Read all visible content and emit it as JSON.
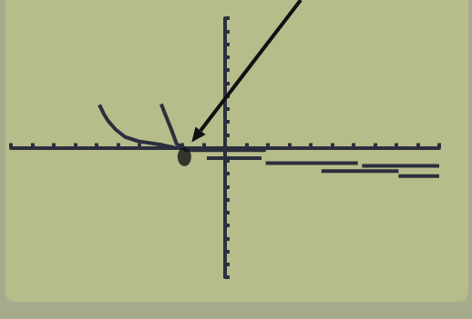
{
  "chart_data": {
    "type": "line",
    "xlim": [
      -10,
      10
    ],
    "ylim": [
      -10,
      10
    ],
    "xticks": [
      -10,
      -9,
      -8,
      -7,
      -6,
      -5,
      -4,
      -3,
      -2,
      -1,
      0,
      1,
      2,
      3,
      4,
      5,
      6,
      7,
      8,
      9,
      10
    ],
    "yticks": [
      -10,
      -9,
      -8,
      -7,
      -6,
      -5,
      -4,
      -3,
      -2,
      -1,
      0,
      1,
      2,
      3,
      4,
      5,
      6,
      7,
      8,
      9,
      10
    ],
    "grid": false,
    "tick_labels": false,
    "color": "#2b2f3d",
    "series": [
      {
        "x": [
          -5.87,
          -5.66,
          -5.45,
          -5.11,
          -4.68,
          -4.04,
          -3.19,
          -2.34
        ],
        "values": [
          3.3,
          2.6,
          2.04,
          1.4,
          0.84,
          0.49,
          0.28,
          0
        ]
      },
      {
        "x": [
          -2.98,
          -2.85,
          -2.68,
          -2.51,
          -2.26,
          -1.91
        ],
        "values": [
          3.37,
          2.81,
          2.11,
          1.4,
          0.28,
          0
        ]
      },
      {
        "x": [
          -1.91,
          1.9
        ],
        "values": [
          -0.2,
          -0.2
        ]
      },
      {
        "x": [
          -0.85,
          1.7
        ],
        "values": [
          -0.8,
          -0.8
        ]
      },
      {
        "x": [
          1.9,
          6.2
        ],
        "values": [
          -1.2,
          -1.2
        ]
      },
      {
        "x": [
          4.5,
          8.1
        ],
        "values": [
          -1.8,
          -1.8
        ]
      },
      {
        "x": [
          6.4,
          10
        ],
        "values": [
          -1.4,
          -1.4
        ]
      },
      {
        "x": [
          8.1,
          10
        ],
        "values": [
          -2.2,
          -2.2
        ]
      }
    ],
    "point": {
      "x": -1.9,
      "y": -0.7,
      "color": "#111111"
    }
  }
}
